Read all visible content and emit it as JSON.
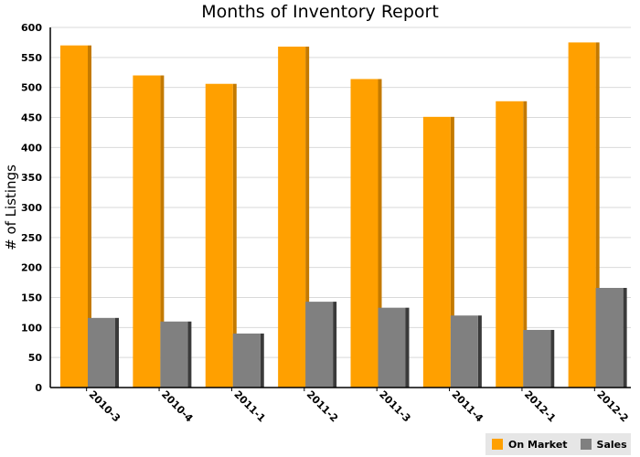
{
  "chart_data": {
    "type": "bar",
    "title": "Months of Inventory Report",
    "xlabel": "",
    "ylabel": "# of Listings",
    "ylim": [
      0,
      600
    ],
    "yticks": [
      0,
      50,
      100,
      150,
      200,
      250,
      300,
      350,
      400,
      450,
      500,
      550,
      600
    ],
    "grid": true,
    "legend_position": "bottom-right",
    "categories": [
      "2010-3",
      "2010-4",
      "2011-1",
      "2011-2",
      "2011-3",
      "2011-4",
      "2012-1",
      "2012-2"
    ],
    "series": [
      {
        "name": "On Market",
        "color": "#ffa000",
        "shade": "#c47a00",
        "values": [
          570,
          520,
          506,
          568,
          514,
          451,
          477,
          575
        ]
      },
      {
        "name": "Sales",
        "color": "#808080",
        "shade": "#3a3a3a",
        "values": [
          116,
          110,
          90,
          143,
          133,
          120,
          96,
          166
        ]
      }
    ]
  }
}
